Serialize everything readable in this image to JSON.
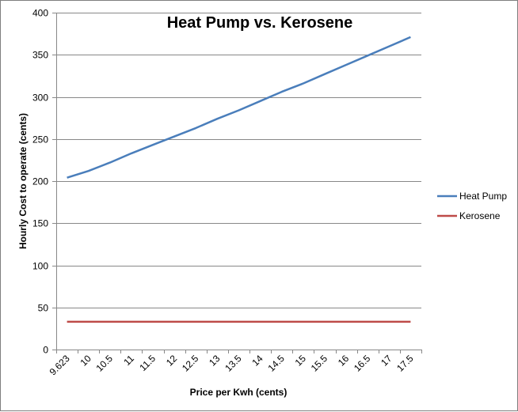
{
  "chart_data": {
    "type": "line",
    "title": "Heat Pump vs. Kerosene",
    "xlabel": "Price per Kwh (cents)",
    "ylabel": "Hourly Cost to operate (cents)",
    "categories": [
      "9.623",
      "10",
      "10.5",
      "11",
      "11.5",
      "12",
      "12.5",
      "13",
      "13.5",
      "14",
      "14.5",
      "15",
      "15.5",
      "16",
      "16.5",
      "17",
      "17.5"
    ],
    "ylim": [
      0,
      400
    ],
    "yticks": [
      0,
      50,
      100,
      150,
      200,
      250,
      300,
      350,
      400
    ],
    "grid": true,
    "legend_position": "right",
    "series": [
      {
        "name": "Heat Pump",
        "color": "#4a7ebb",
        "values": [
          204,
          212,
          222,
          233,
          243,
          253,
          263,
          274,
          284,
          295,
          306,
          316,
          327,
          338,
          349,
          360,
          371
        ]
      },
      {
        "name": "Kerosene",
        "color": "#be4b48",
        "values": [
          33,
          33,
          33,
          33,
          33,
          33,
          33,
          33,
          33,
          33,
          33,
          33,
          33,
          33,
          33,
          33,
          33
        ]
      }
    ]
  }
}
